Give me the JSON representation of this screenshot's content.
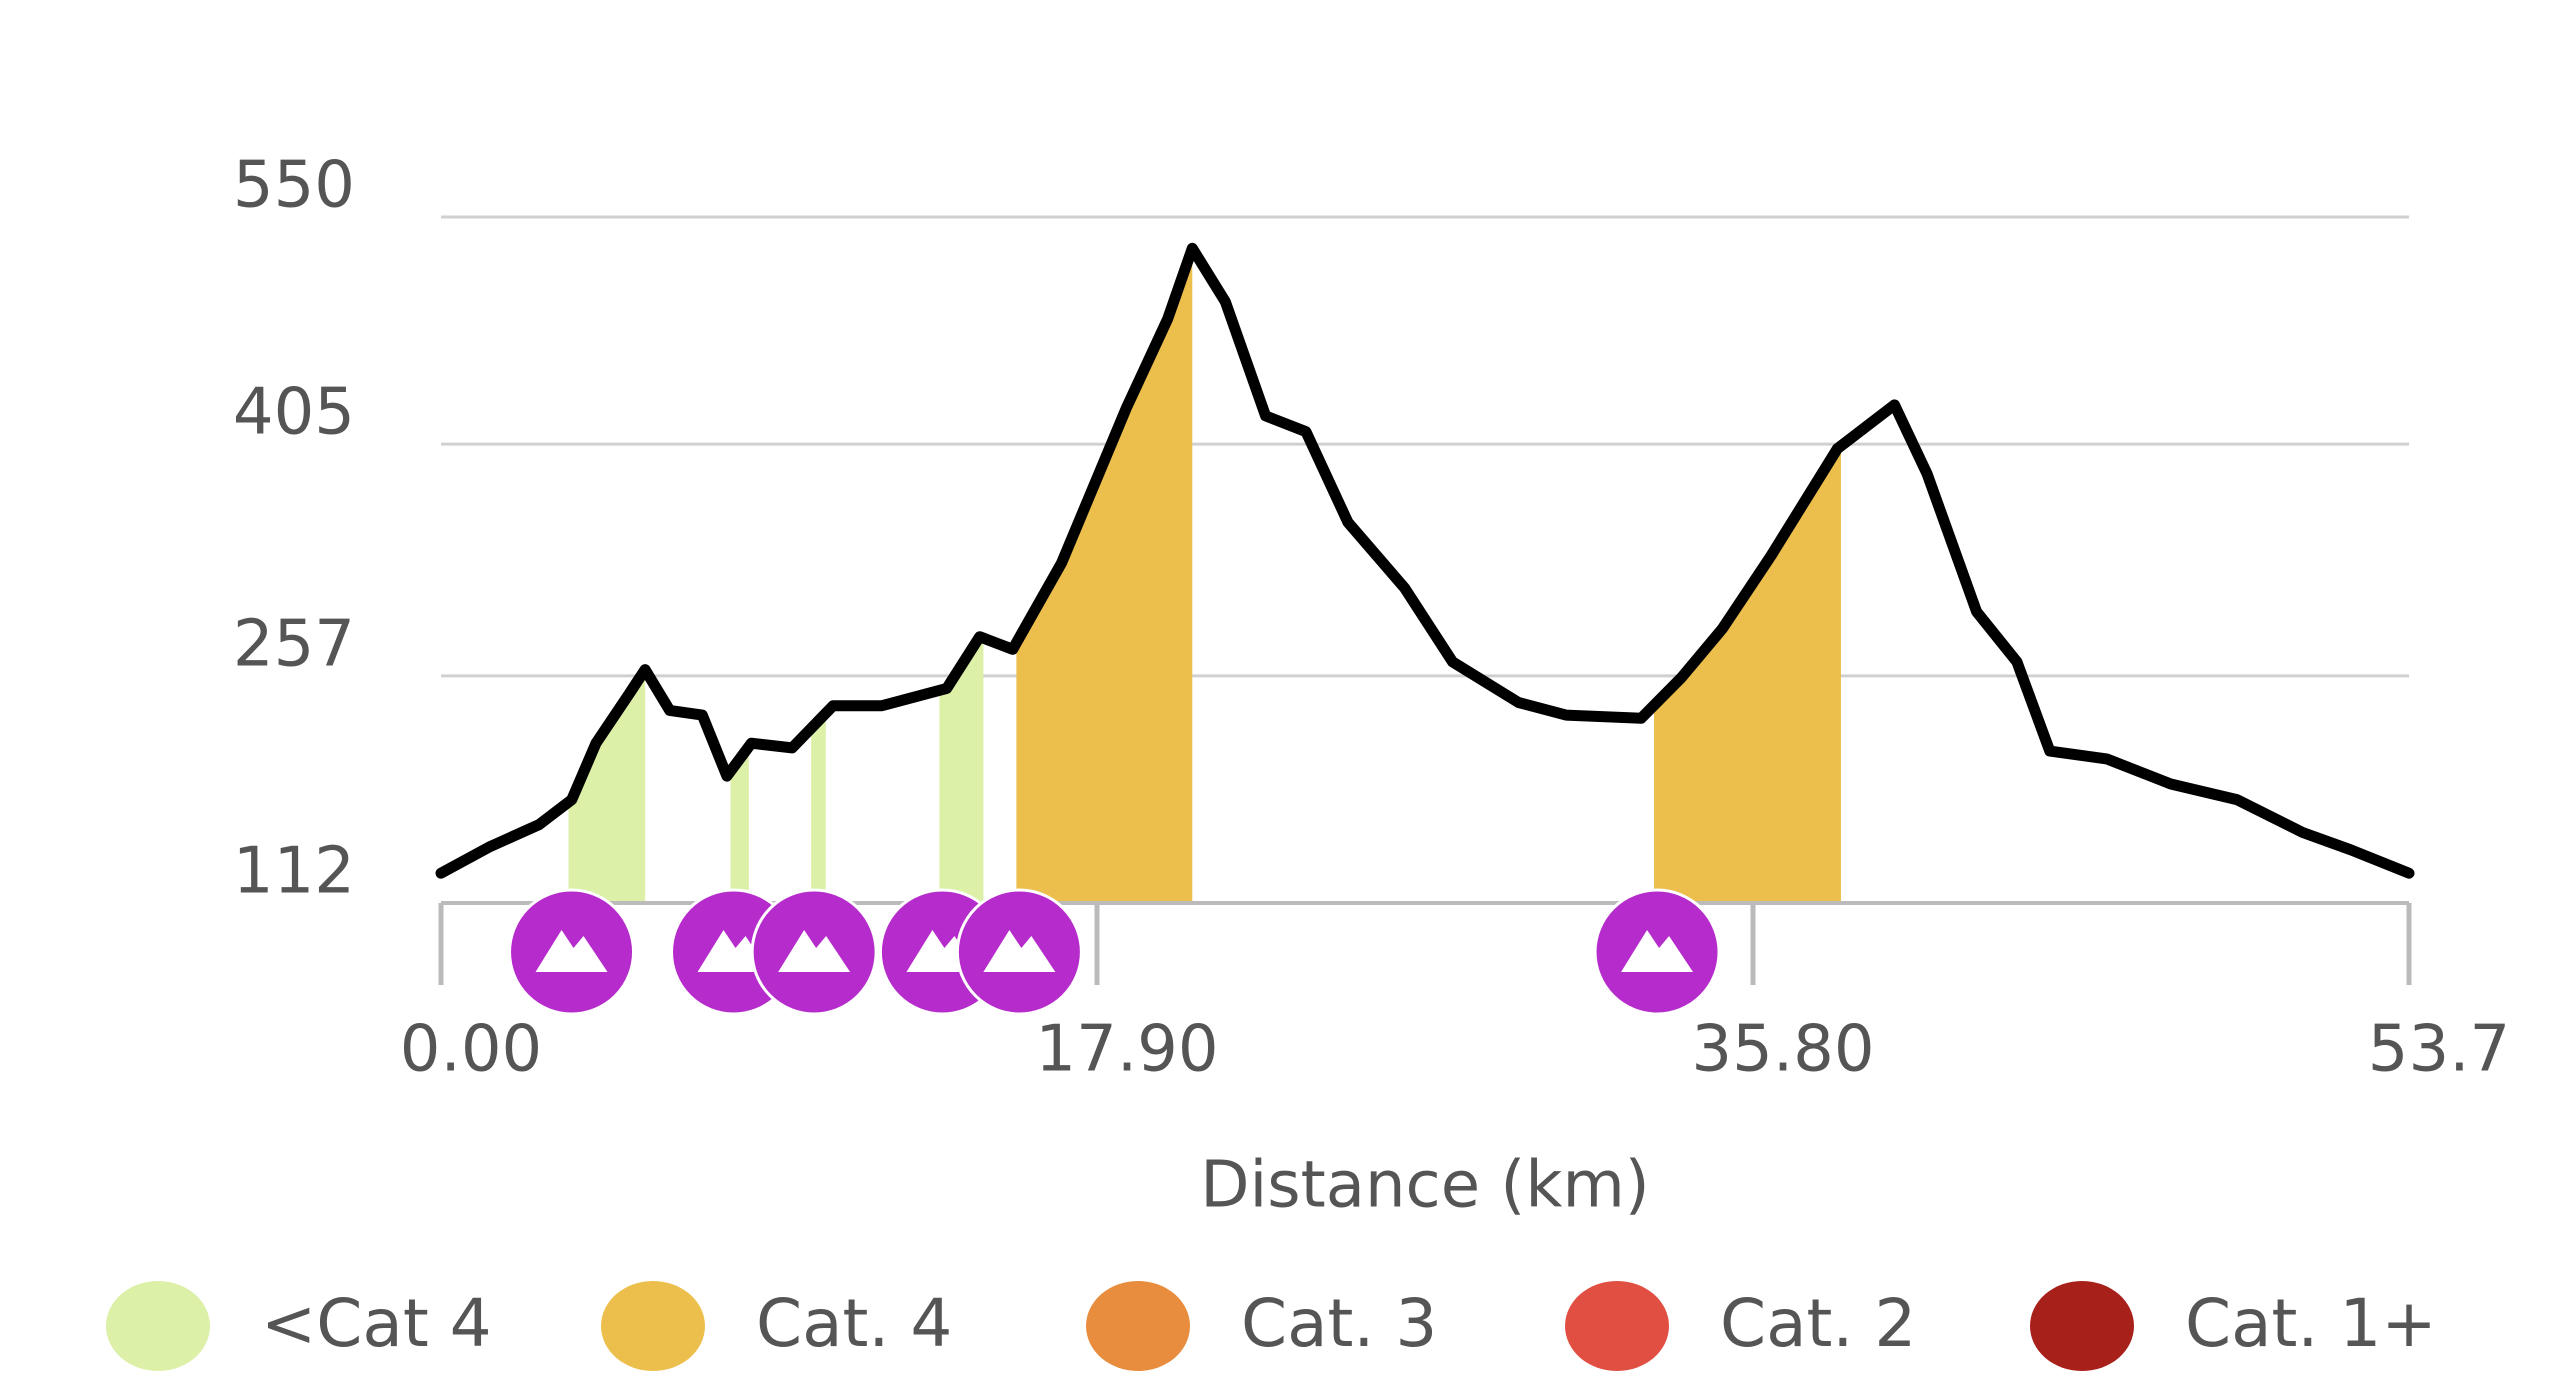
{
  "chart_data": {
    "type": "line",
    "x_axis_label": "Distance (km)",
    "x": [
      0,
      1.34,
      2.67,
      3.57,
      4.23,
      5.12,
      5.57,
      6.24,
      7.13,
      7.8,
      8.47,
      9.58,
      10.7,
      12.03,
      13.8,
      14.7,
      15.6,
      16.93,
      18.7,
      19.83,
      20.5,
      21.4,
      22.5,
      23.6,
      24.75,
      26.3,
      27.6,
      29.4,
      30.7,
      32.75,
      33.85,
      34.96,
      36.3,
      38.1,
      39.66,
      40.55,
      41.9,
      43,
      43.9,
      45.45,
      47.2,
      49,
      50.8,
      52.1,
      53.7
    ],
    "values": [
      131,
      148,
      162,
      178,
      214,
      245,
      261,
      235,
      232,
      193,
      214,
      211,
      238,
      238,
      249,
      282,
      274,
      329,
      428,
      485,
      530,
      496,
      423,
      413,
      355,
      313,
      266,
      240,
      232,
      230,
      256,
      287,
      334,
      402,
      430,
      386,
      298,
      266,
      209,
      204,
      188,
      178,
      157,
      146,
      131
    ],
    "color": "#000000",
    "xlim": [
      0,
      53.7
    ],
    "xticks": [
      {
        "value": 0,
        "label": "0.00"
      },
      {
        "value": 17.9,
        "label": "17.90"
      },
      {
        "value": 35.8,
        "label": "35.80"
      },
      53.7
    ],
    "ylim": [
      112,
      550
    ],
    "yticks": [
      112,
      257,
      405,
      550
    ],
    "grid": true,
    "marker_color": "#b62bcb",
    "climb_categories": [
      {
        "name": "<Cat 4",
        "color": "#dcf0a8",
        "climbs": [
          {
            "start": 3.48,
            "end": 5.57
          },
          {
            "start": 7.9,
            "end": 8.4
          },
          {
            "start": 10.1,
            "end": 10.5
          },
          {
            "start": 13.6,
            "end": 14.8
          }
        ]
      },
      {
        "name": "Cat. 4",
        "color": "#ecbf4c",
        "climbs": [
          {
            "start": 15.7,
            "end": 20.5
          },
          {
            "start": 33.1,
            "end": 38.2
          }
        ]
      },
      {
        "name": "Cat. 3",
        "color": "#e88d3e",
        "climbs": []
      },
      {
        "name": "Cat. 2",
        "color": "#e04f42",
        "climbs": []
      },
      {
        "name": "Cat. 1+",
        "color": "#a8201a",
        "climbs": []
      }
    ]
  }
}
